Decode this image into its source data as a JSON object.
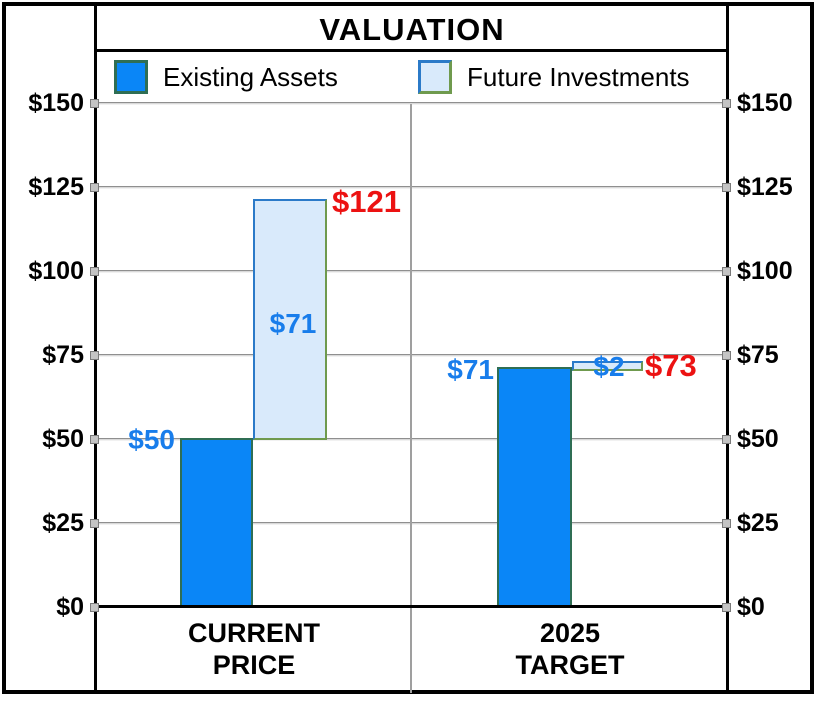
{
  "title": "VALUATION",
  "legend": {
    "items": [
      {
        "label": "Existing Assets",
        "swatch": "existing"
      },
      {
        "label": "Future Investments",
        "swatch": "future"
      }
    ]
  },
  "colors": {
    "existing_fill": "#0A86F7",
    "existing_border": "#2F6E54",
    "future_fill": "#D9EAFB",
    "future_border_blue": "#2B7AC8",
    "future_border_olive": "#6F9A4E",
    "value_label_blue": "#187DEB",
    "total_label_red": "#EC1212",
    "grid_gray": "#9F9F9F",
    "axis_black": "#000000"
  },
  "y_axis": {
    "ticks": [
      {
        "label": "$150",
        "value": 150
      },
      {
        "label": "$125",
        "value": 125
      },
      {
        "label": "$100",
        "value": 100
      },
      {
        "label": "$75",
        "value": 75
      },
      {
        "label": "$50",
        "value": 50
      },
      {
        "label": "$25",
        "value": 25
      },
      {
        "label": "$0",
        "value": 0
      }
    ]
  },
  "categories": [
    {
      "line1": "CURRENT",
      "line2": "PRICE"
    },
    {
      "line1": "2025",
      "line2": "TARGET"
    }
  ],
  "chart_data": {
    "type": "bar",
    "subtype": "waterfall-stacked",
    "title": "VALUATION",
    "categories": [
      "CURRENT PRICE",
      "2025 TARGET"
    ],
    "series": [
      {
        "name": "Existing Assets",
        "values": [
          50,
          71
        ]
      },
      {
        "name": "Future Investments",
        "values": [
          71,
          2
        ]
      }
    ],
    "totals": [
      121,
      73
    ],
    "ylim": [
      0,
      150
    ],
    "ytick_step": 25,
    "grid": true,
    "legend_position": "top",
    "y_axis_sides": [
      "left",
      "right"
    ]
  },
  "annotations": [
    {
      "id": "cp-existing",
      "text": "$50",
      "color": "blue"
    },
    {
      "id": "cp-future",
      "text": "$71",
      "color": "blue"
    },
    {
      "id": "cp-total",
      "text": "$121",
      "color": "red"
    },
    {
      "id": "t-existing",
      "text": "$71",
      "color": "blue"
    },
    {
      "id": "t-future",
      "text": "$2",
      "color": "blue"
    },
    {
      "id": "t-total",
      "text": "$73",
      "color": "red"
    }
  ]
}
